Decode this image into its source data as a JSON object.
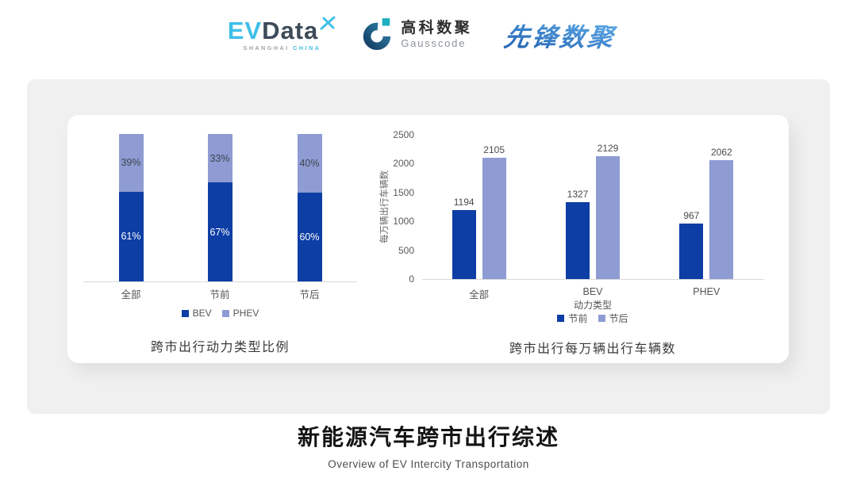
{
  "header": {
    "evdata": {
      "part1": "EV",
      "part2": "Data",
      "tagline1": "SHANGHAI",
      "tagline2": "CHINA"
    },
    "gausscode": {
      "name_cn": "高科数聚",
      "name_en": "Gausscode"
    },
    "pioneer": {
      "name": "先锋数聚"
    }
  },
  "chart_data": [
    {
      "type": "bar",
      "variant": "stacked-100-percent",
      "title": "跨市出行动力类型比例",
      "categories": [
        "全部",
        "节前",
        "节后"
      ],
      "series": [
        {
          "name": "BEV",
          "values": [
            61,
            67,
            60
          ],
          "color": "#0d3ea5",
          "label_color": "#ffffff"
        },
        {
          "name": "PHEV",
          "values": [
            39,
            33,
            40
          ],
          "color": "#8e9cd3",
          "label_color": "#3f4450"
        }
      ],
      "unit": "%",
      "ylim": [
        0,
        100
      ],
      "grid": false,
      "legend_position": "bottom"
    },
    {
      "type": "bar",
      "variant": "grouped",
      "title": "跨市出行每万辆出行车辆数",
      "xlabel": "动力类型",
      "ylabel": "每万辆出行车辆数",
      "categories": [
        "全部",
        "BEV",
        "PHEV"
      ],
      "series": [
        {
          "name": "节前",
          "values": [
            1194,
            1327,
            967
          ],
          "color": "#0d3ea5"
        },
        {
          "name": "节后",
          "values": [
            2105,
            2129,
            2062
          ],
          "color": "#8e9cd3"
        }
      ],
      "yticks": [
        0,
        500,
        1000,
        1500,
        2000,
        2500
      ],
      "ylim": [
        0,
        2500
      ],
      "grid": false,
      "legend_position": "bottom"
    }
  ],
  "footer": {
    "title": "新能源汽车跨市出行综述",
    "subtitle": "Overview of EV Intercity Transportation"
  }
}
